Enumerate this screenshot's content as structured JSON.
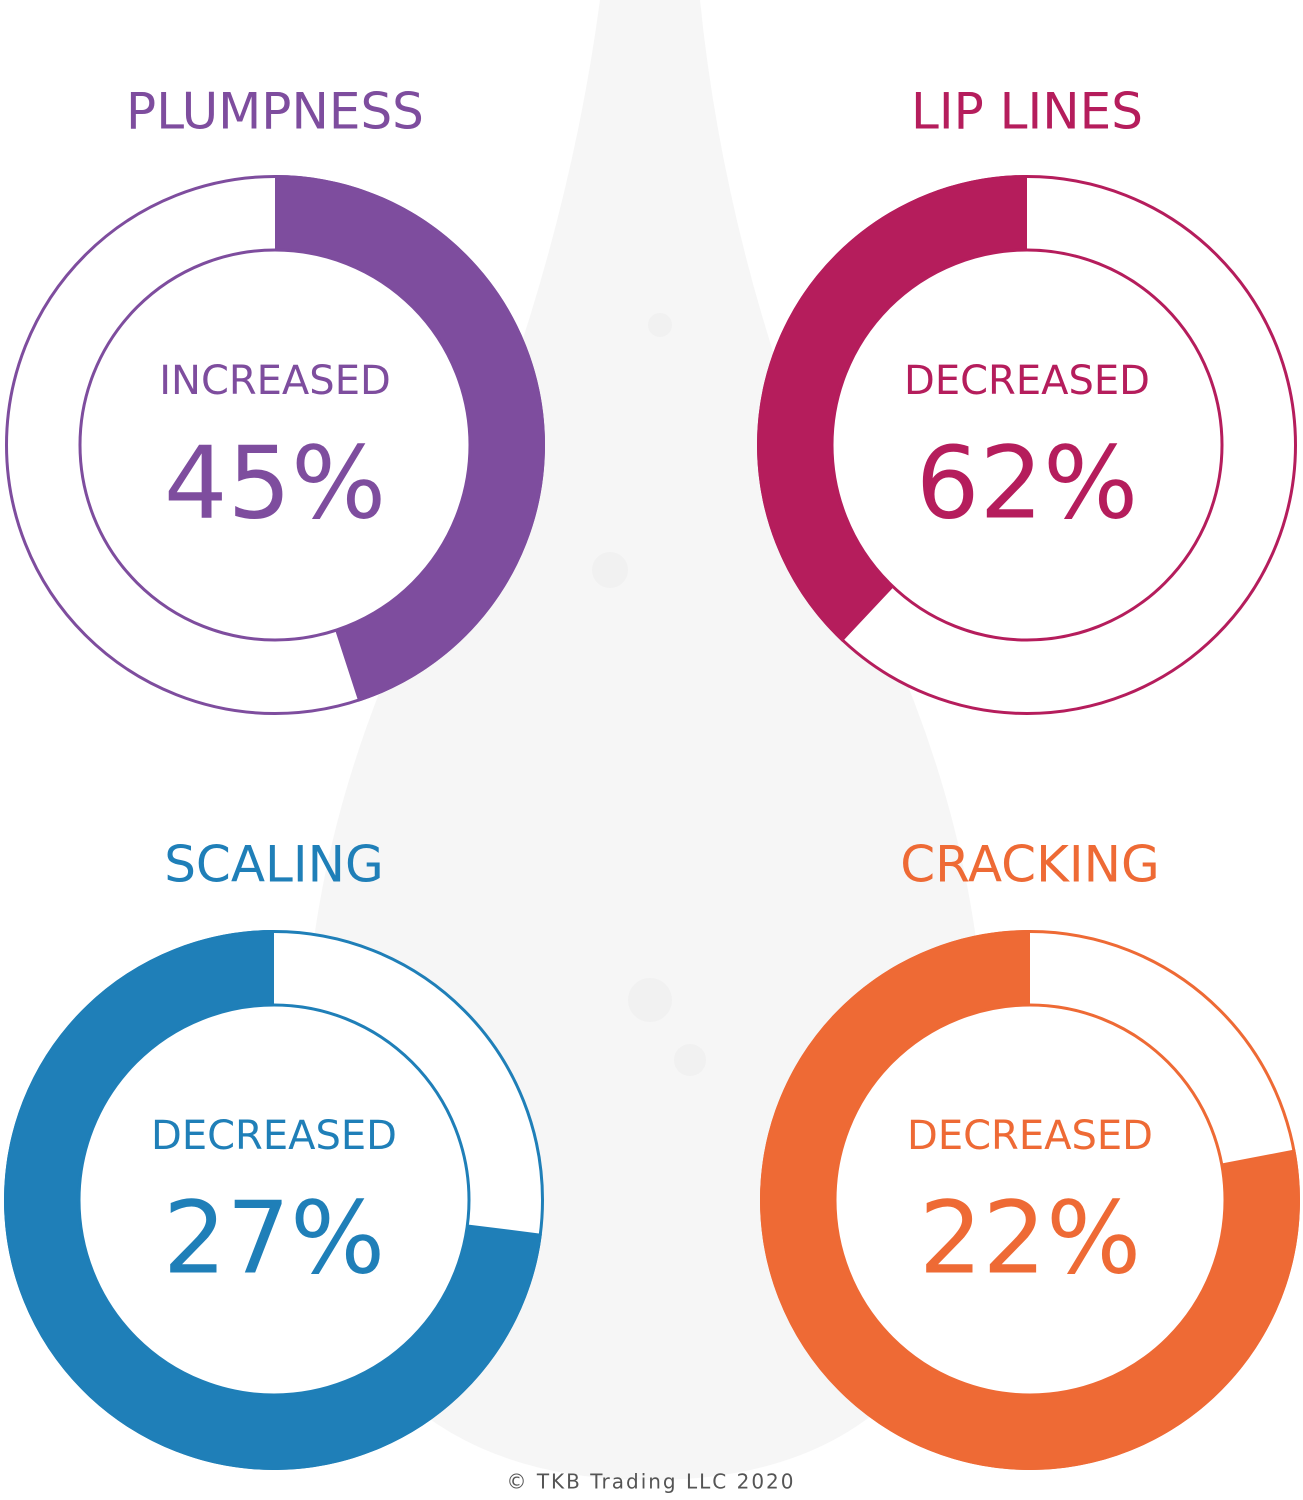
{
  "chart_data": [
    {
      "type": "donut",
      "title": "PLUMPNESS",
      "label": "INCREASED",
      "values": [
        45
      ],
      "value_labels": [
        "45%"
      ],
      "color": "#7e4d9e",
      "highlight": "arc"
    },
    {
      "type": "donut",
      "title": "LIP LINES",
      "label": "DECREASED",
      "values": [
        62
      ],
      "value_labels": [
        "62%"
      ],
      "color": "#b51d5c",
      "highlight": "gap"
    },
    {
      "type": "donut",
      "title": "SCALING",
      "label": "DECREASED",
      "values": [
        27
      ],
      "value_labels": [
        "27%"
      ],
      "color": "#1f7fb8",
      "highlight": "gap"
    },
    {
      "type": "donut",
      "title": "CRACKING",
      "label": "DECREASED",
      "values": [
        22
      ],
      "value_labels": [
        "22%"
      ],
      "color": "#ee6a35",
      "highlight": "gap"
    }
  ],
  "footer": "© TKB Trading LLC 2020"
}
